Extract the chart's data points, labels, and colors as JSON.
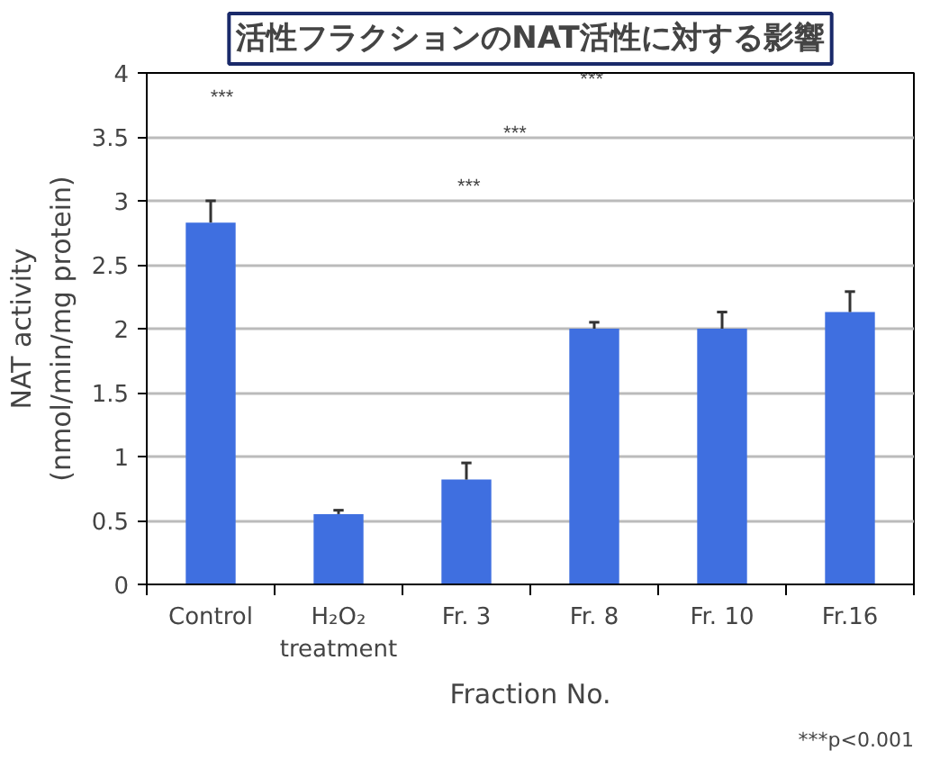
{
  "chart_data": {
    "type": "bar",
    "title": "活性フラクションのNAT活性に対する影響",
    "xlabel": "Fraction No.",
    "ylabel": "NAT activity\n(nmol/min/mg protein)",
    "categories": [
      "Control",
      "H₂O₂\ntreatment",
      "Fr. 3",
      "Fr. 8",
      "Fr. 10",
      "Fr.16"
    ],
    "values": [
      2.83,
      0.55,
      0.82,
      2.0,
      2.0,
      2.13
    ],
    "errors": [
      [
        2.83,
        3.0
      ],
      [
        0.55,
        0.58
      ],
      [
        0.82,
        0.95
      ],
      [
        2.0,
        2.05
      ],
      [
        2.0,
        2.13
      ],
      [
        2.13,
        2.29
      ]
    ],
    "color": "#3f6fe0",
    "ylim": [
      0,
      4
    ],
    "yticks": [
      0,
      0.5,
      1,
      1.5,
      2,
      2.5,
      3,
      3.5,
      4
    ],
    "grid": "y",
    "annotations": [
      "***",
      "***",
      "***",
      "***",
      "***p<0.001"
    ]
  }
}
